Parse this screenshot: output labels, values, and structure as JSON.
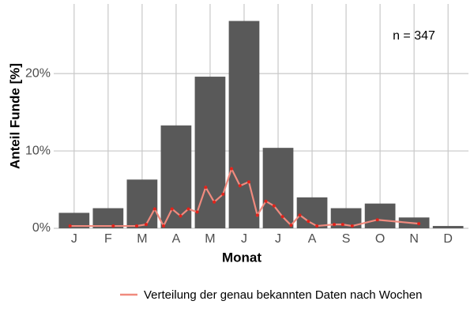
{
  "chart_data": {
    "type": "bar",
    "categories": [
      "J",
      "F",
      "M",
      "A",
      "M",
      "J",
      "J",
      "A",
      "S",
      "O",
      "N",
      "D"
    ],
    "values": [
      2.0,
      2.6,
      6.3,
      13.3,
      19.6,
      26.8,
      10.4,
      4.0,
      2.6,
      3.2,
      1.4,
      0.3
    ],
    "color": "#595959",
    "xlim": [
      0.4,
      12.6
    ],
    "ylim": [
      0,
      29
    ],
    "yticks": [
      {
        "value": 0,
        "label": "0%"
      },
      {
        "value": 10,
        "label": "10%"
      },
      {
        "value": 20,
        "label": "20%"
      }
    ],
    "grid": true,
    "xlabel": "Monat",
    "ylabel": "Anteil Funde [%]",
    "annotation": "n = 347",
    "legend": "bottom",
    "series": [
      {
        "name": "Verteilung der genau bekannten Daten nach Wochen",
        "type": "line",
        "color": "#f08a7e",
        "point_color": "#e3231b",
        "x": [
          0.88,
          2.15,
          2.84,
          3.12,
          3.37,
          3.63,
          3.88,
          4.13,
          4.36,
          4.62,
          4.87,
          5.12,
          5.38,
          5.63,
          5.88,
          6.14,
          6.39,
          6.64,
          6.88,
          7.13,
          7.38,
          7.64,
          7.89,
          8.14,
          8.65,
          8.9,
          9.18,
          9.92,
          11.14
        ],
        "values": [
          0.3,
          0.3,
          0.3,
          0.5,
          2.5,
          0.3,
          2.5,
          1.6,
          2.5,
          2.1,
          5.3,
          3.4,
          4.4,
          7.7,
          5.5,
          6.0,
          1.7,
          3.5,
          2.9,
          1.5,
          0.4,
          1.7,
          0.9,
          0.3,
          0.5,
          0.5,
          0.3,
          1.1,
          0.6
        ]
      }
    ]
  }
}
